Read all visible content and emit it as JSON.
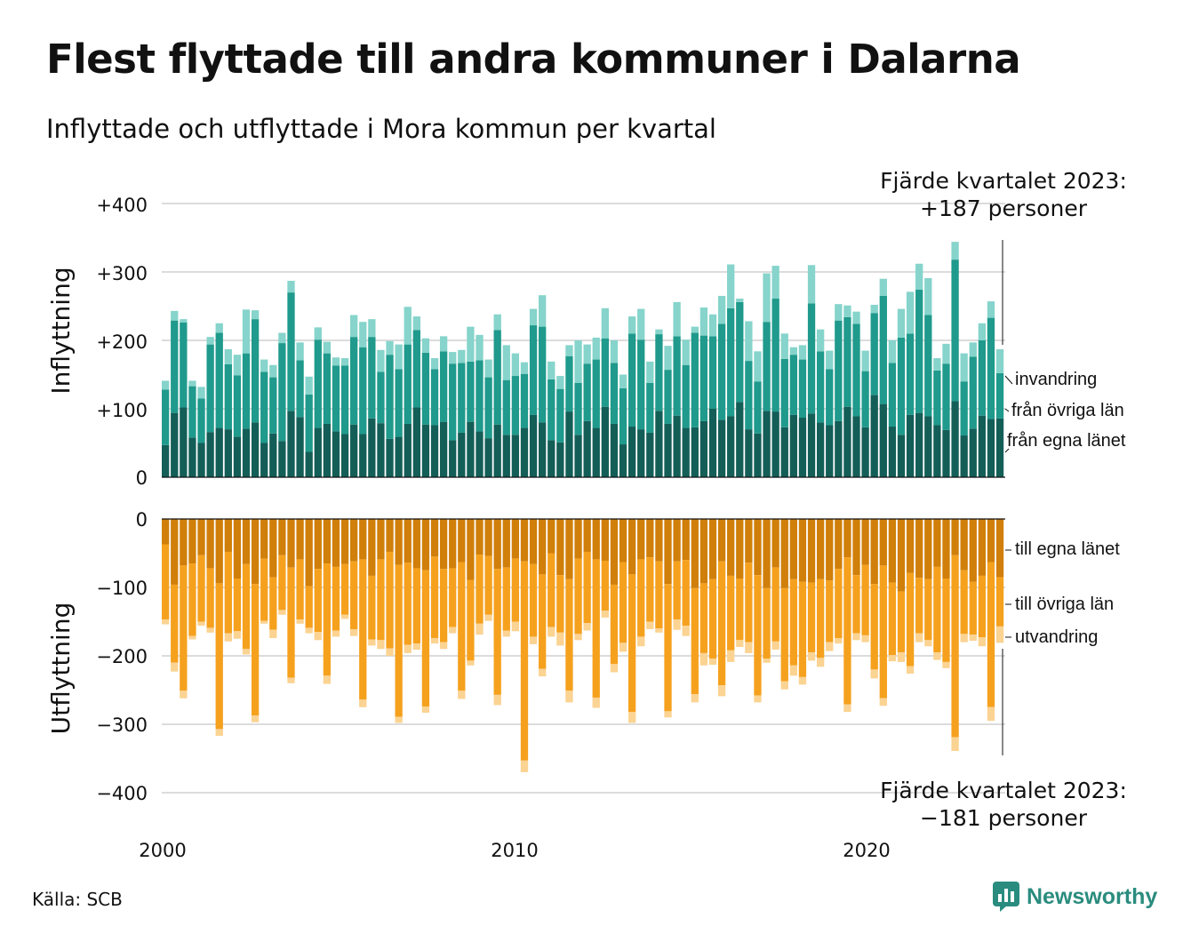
{
  "header": {
    "title": "Flest flyttade till andra kommuner i Dalarna",
    "subtitle": "Inflyttade och utflyttade i Mora kommun per kvartal"
  },
  "footer": {
    "source": "Källa: SCB",
    "brand": "Newsworthy"
  },
  "annotations": {
    "top_line1": "Fjärde kvartalet 2023:",
    "top_line2": "+187 personer",
    "bottom_line1": "Fjärde kvartalet 2023:",
    "bottom_line2": "−181 personer"
  },
  "colors": {
    "in_egna": "#145e58",
    "in_ovriga": "#1f9a8c",
    "in_invandring": "#86d4cb",
    "out_egna": "#d07f0a",
    "out_ovriga": "#f5a11e",
    "out_utvandring": "#fbd392",
    "brand": "#2a8c7e"
  },
  "chart_data": {
    "type": "bar",
    "stacked": true,
    "x_ticks": [
      "2000",
      "2010",
      "2020"
    ],
    "panels": [
      {
        "ylabel": "Inflyttning",
        "yticks": [
          "+400",
          "+300",
          "+200",
          "+100",
          "0"
        ],
        "ylim": [
          0,
          400
        ],
        "series": [
          {
            "name": "från egna länet",
            "values": [
              47,
              94,
              102,
              58,
              50,
              66,
              72,
              70,
              59,
              71,
              80,
              50,
              64,
              53,
              97,
              88,
              37,
              72,
              78,
              67,
              63,
              77,
              63,
              86,
              79,
              56,
              59,
              78,
              102,
              77,
              76,
              81,
              54,
              65,
              81,
              67,
              57,
              77,
              62,
              62,
              72,
              91,
              80,
              54,
              51,
              96,
              62,
              82,
              72,
              103,
              78,
              48,
              74,
              70,
              65,
              97,
              78,
              90,
              72,
              73,
              82,
              100,
              84,
              89,
              110,
              70,
              64,
              97,
              96,
              73,
              91,
              87,
              93,
              80,
              76,
              82,
              103,
              89,
              73,
              120,
              107,
              74,
              62,
              91,
              94,
              89,
              76,
              69,
              111,
              61,
              71,
              90,
              85,
              86
            ]
          },
          {
            "name": "från övriga län",
            "values": [
              81,
              135,
              124,
              75,
              65,
              128,
              139,
              95,
              90,
              110,
              151,
              104,
              82,
              143,
              173,
              83,
              84,
              129,
              103,
              96,
              100,
              128,
              127,
              119,
              75,
              123,
              99,
              116,
              113,
              105,
              82,
              103,
              112,
              102,
              88,
              104,
              89,
              138,
              80,
              86,
              79,
              131,
              140,
              89,
              78,
              81,
              76,
              84,
              100,
              100,
              89,
              82,
              136,
              131,
              73,
              112,
              79,
              116,
              92,
              138,
              125,
              106,
              140,
              158,
              146,
              100,
              76,
              130,
              165,
              100,
              88,
              85,
              161,
              104,
              82,
              147,
              131,
              135,
              82,
              120,
              158,
              93,
              142,
              119,
              180,
              148,
              80,
              97,
              207,
              79,
              105,
              110,
              148,
              66
            ]
          },
          {
            "name": "invandring",
            "values": [
              13,
              14,
              5,
              8,
              17,
              11,
              14,
              22,
              30,
              64,
              13,
              18,
              18,
              15,
              17,
              26,
              26,
              18,
              17,
              12,
              11,
              32,
              37,
              26,
              32,
              20,
              36,
              55,
              20,
              21,
              16,
              22,
              17,
              19,
              51,
              37,
              26,
              23,
              51,
              33,
              17,
              24,
              46,
              26,
              19,
              16,
              62,
              28,
              32,
              44,
              33,
              20,
              25,
              45,
              31,
              7,
              35,
              50,
              37,
              9,
              41,
              32,
              41,
              64,
              5,
              58,
              44,
              71,
              48,
              37,
              11,
              21,
              56,
              32,
              27,
              24,
              17,
              18,
              30,
              12,
              25,
              33,
              42,
              61,
              38,
              54,
              18,
              29,
              26,
              41,
              21,
              25,
              24,
              35
            ]
          }
        ]
      },
      {
        "ylabel": "Utflyttning",
        "yticks": [
          "0",
          "−100",
          "−200",
          "−300",
          "−400"
        ],
        "ylim": [
          -400,
          0
        ],
        "series": [
          {
            "name": "till egna länet",
            "values": [
              -37,
              -96,
              -68,
              -65,
              -53,
              -72,
              -94,
              -48,
              -87,
              -66,
              -95,
              -58,
              -85,
              -53,
              -71,
              -59,
              -98,
              -73,
              -65,
              -70,
              -66,
              -62,
              -59,
              -83,
              -59,
              -48,
              -67,
              -64,
              -72,
              -75,
              -55,
              -73,
              -72,
              -63,
              -89,
              -52,
              -54,
              -73,
              -71,
              -58,
              -62,
              -66,
              -81,
              -50,
              -82,
              -88,
              -58,
              -48,
              -59,
              -61,
              -96,
              -63,
              -81,
              -59,
              -56,
              -62,
              -95,
              -62,
              -60,
              -101,
              -94,
              -88,
              -62,
              -83,
              -87,
              -64,
              -82,
              -101,
              -71,
              -101,
              -88,
              -92,
              -93,
              -88,
              -90,
              -73,
              -56,
              -82,
              -67,
              -95,
              -68,
              -93,
              -106,
              -79,
              -86,
              -88,
              -70,
              -87,
              -53,
              -75,
              -92,
              -83,
              -63,
              -85
            ]
          },
          {
            "name": "till övriga län",
            "values": [
              -110,
              -114,
              -183,
              -106,
              -97,
              -87,
              -213,
              -119,
              -77,
              -124,
              -192,
              -91,
              -77,
              -80,
              -161,
              -88,
              -61,
              -92,
              -164,
              -93,
              -74,
              -99,
              -205,
              -93,
              -118,
              -141,
              -222,
              -120,
              -110,
              -199,
              -119,
              -107,
              -86,
              -188,
              -118,
              -101,
              -86,
              -184,
              -92,
              -92,
              -291,
              -106,
              -138,
              -108,
              -84,
              -163,
              -110,
              -104,
              -202,
              -73,
              -116,
              -118,
              -201,
              -113,
              -94,
              -98,
              -186,
              -85,
              -96,
              -155,
              -102,
              -116,
              -181,
              -109,
              -90,
              -116,
              -176,
              -103,
              -108,
              -136,
              -126,
              -139,
              -102,
              -115,
              -90,
              -101,
              -215,
              -85,
              -103,
              -125,
              -194,
              -106,
              -89,
              -136,
              -81,
              -89,
              -125,
              -122,
              -266,
              -93,
              -77,
              -90,
              -212,
              -72
            ]
          },
          {
            "name": "utvandring",
            "values": [
              -7,
              -13,
              -11,
              -5,
              -6,
              -7,
              -10,
              -12,
              -11,
              -8,
              -10,
              -4,
              -12,
              -7,
              -8,
              -6,
              -8,
              -12,
              -12,
              -9,
              -6,
              -10,
              -11,
              -9,
              -13,
              -11,
              -9,
              -12,
              -9,
              -9,
              -8,
              -10,
              -9,
              -12,
              -7,
              -16,
              -9,
              -15,
              -9,
              -14,
              -17,
              -11,
              -11,
              -14,
              -19,
              -17,
              -9,
              -11,
              -15,
              -10,
              -12,
              -13,
              -16,
              -14,
              -11,
              -6,
              -9,
              -15,
              -15,
              -12,
              -18,
              -9,
              -16,
              -17,
              -10,
              -16,
              -10,
              -6,
              -12,
              -12,
              -15,
              -11,
              -12,
              -13,
              -13,
              -8,
              -11,
              -10,
              -10,
              -13,
              -11,
              -9,
              -14,
              -11,
              -13,
              -9,
              -11,
              -9,
              -20,
              -12,
              -9,
              -13,
              -20,
              -24
            ]
          }
        ]
      }
    ],
    "legend": {
      "top": [
        "invandring",
        "från övriga län",
        "från egna länet"
      ],
      "bottom": [
        "till egna länet",
        "till övriga län",
        "utvandring"
      ]
    }
  }
}
